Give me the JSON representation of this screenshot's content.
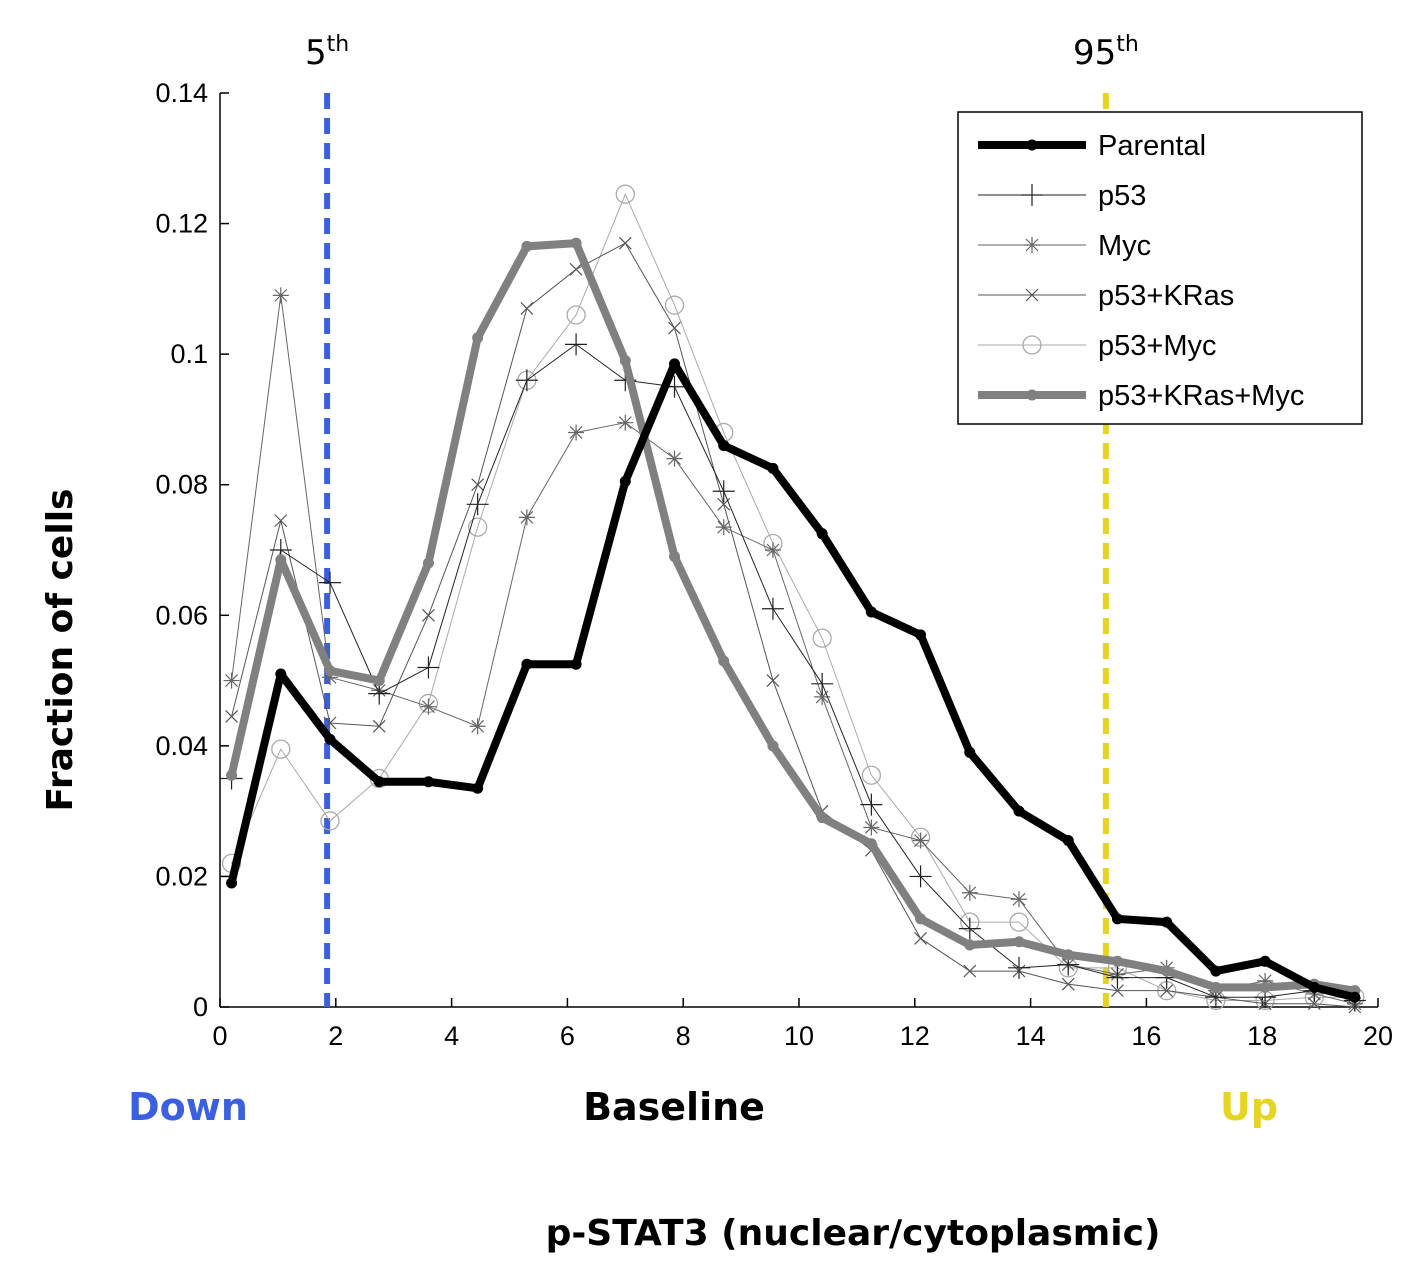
{
  "chart_data": {
    "type": "line",
    "title": "",
    "xlabel": "p-STAT3 (nuclear/cytoplasmic)",
    "ylabel": "Fraction of cells",
    "xlim": [
      0,
      20
    ],
    "ylim": [
      0,
      0.14
    ],
    "x_ticks": [
      "0",
      "2",
      "4",
      "6",
      "8",
      "10",
      "12",
      "14",
      "16",
      "18",
      "20"
    ],
    "y_ticks": [
      "0",
      "0.02",
      "0.04",
      "0.06",
      "0.08",
      "0.1",
      "0.12",
      "0.14"
    ],
    "grid": false,
    "legend_position": "top-right",
    "x": [
      0.2,
      1.05,
      1.9,
      2.75,
      3.6,
      4.45,
      5.3,
      6.15,
      7.0,
      7.85,
      8.7,
      9.55,
      10.4,
      11.25,
      12.1,
      12.95,
      13.8,
      14.65,
      15.5,
      16.35,
      17.2,
      18.05,
      18.9,
      19.6
    ],
    "thresholds": [
      {
        "label": "5",
        "suffix": "th",
        "x": 1.85,
        "color": "#3A5FE0"
      },
      {
        "label": "95",
        "suffix": "th",
        "x": 15.3,
        "color": "#E6D422"
      }
    ],
    "regions": [
      {
        "label": "Down",
        "color": "#3A5FE0"
      },
      {
        "label": "Baseline",
        "color": "#000000"
      },
      {
        "label": "Up",
        "color": "#E6D422"
      }
    ],
    "series": [
      {
        "name": "Parental",
        "color": "#000000",
        "width": 8,
        "marker": "dot",
        "values": [
          0.019,
          0.051,
          0.041,
          0.0345,
          0.0345,
          0.0335,
          0.0525,
          0.0525,
          0.0805,
          0.0985,
          0.086,
          0.0825,
          0.0725,
          0.0605,
          0.057,
          0.039,
          0.03,
          0.0255,
          0.0135,
          0.013,
          0.0055,
          0.007,
          0.003,
          0.0015
        ]
      },
      {
        "name": "p53",
        "color": "#222222",
        "width": 1,
        "marker": "plus",
        "values": [
          0.035,
          0.07,
          0.065,
          0.048,
          0.052,
          0.077,
          0.096,
          0.1015,
          0.096,
          0.095,
          0.079,
          0.061,
          0.0495,
          0.031,
          0.02,
          0.012,
          0.006,
          0.0065,
          0.0045,
          0.0045,
          0.0015,
          0.0015,
          0.0025,
          0.001
        ]
      },
      {
        "name": "Myc",
        "color": "#666666",
        "width": 1,
        "marker": "asterisk",
        "values": [
          0.05,
          0.109,
          0.0505,
          0.0485,
          0.046,
          0.043,
          0.075,
          0.088,
          0.0895,
          0.084,
          0.0735,
          0.07,
          0.0475,
          0.0275,
          0.0255,
          0.0175,
          0.0165,
          0.0065,
          0.005,
          0.006,
          0.0025,
          0.004,
          0.002,
          0.0005
        ]
      },
      {
        "name": "p53+KRas",
        "color": "#555555",
        "width": 1,
        "marker": "cross",
        "values": [
          0.0445,
          0.0745,
          0.0435,
          0.043,
          0.06,
          0.08,
          0.107,
          0.113,
          0.117,
          0.104,
          0.077,
          0.05,
          0.03,
          0.024,
          0.0105,
          0.0055,
          0.0055,
          0.0035,
          0.0025,
          0.0025,
          0.0015,
          0.0005,
          0.0005,
          0.0
        ]
      },
      {
        "name": "p53+Myc",
        "color": "#AAAAAA",
        "width": 1,
        "marker": "circle",
        "values": [
          0.022,
          0.0395,
          0.0285,
          0.035,
          0.0465,
          0.0735,
          0.096,
          0.106,
          0.1245,
          0.1075,
          0.088,
          0.071,
          0.0565,
          0.0355,
          0.026,
          0.013,
          0.013,
          0.006,
          0.006,
          0.0025,
          0.001,
          0.001,
          0.0015,
          0.0015
        ]
      },
      {
        "name": "p53+KRas+Myc",
        "color": "#808080",
        "width": 8,
        "marker": "dot",
        "values": [
          0.0355,
          0.0685,
          0.0515,
          0.05,
          0.068,
          0.1025,
          0.1165,
          0.117,
          0.099,
          0.069,
          0.053,
          0.04,
          0.029,
          0.025,
          0.0135,
          0.0095,
          0.01,
          0.008,
          0.007,
          0.0055,
          0.003,
          0.003,
          0.0035,
          0.0025
        ]
      }
    ]
  }
}
